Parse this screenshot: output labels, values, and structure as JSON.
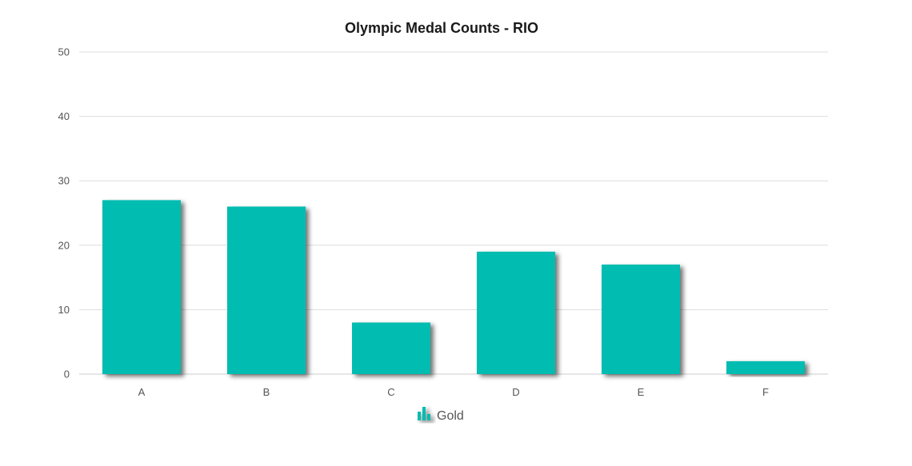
{
  "chart_data": {
    "type": "bar",
    "title": "Olympic Medal Counts - RIO",
    "xlabel": "",
    "ylabel": "",
    "categories": [
      "A",
      "B",
      "C",
      "D",
      "E",
      "F"
    ],
    "series": [
      {
        "name": "Gold",
        "values": [
          27,
          26,
          8,
          19,
          17,
          2
        ],
        "color": "#01BCB1"
      }
    ],
    "ylim": [
      0,
      50
    ],
    "yticks": [
      0,
      10,
      20,
      30,
      40,
      50
    ],
    "grid": true,
    "legend_position": "bottom-center",
    "legend_icon": "bar-chart-icon"
  }
}
